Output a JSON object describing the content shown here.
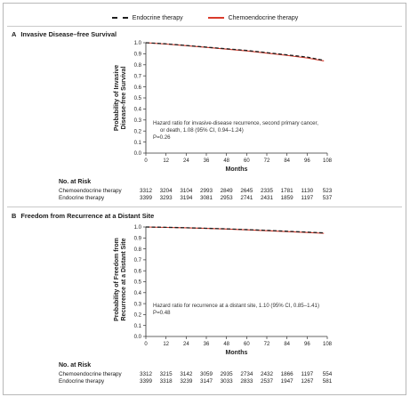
{
  "legend": [
    {
      "label": "Endocrine therapy",
      "color": "#1e1e1e",
      "style": "dashed"
    },
    {
      "label": "Chemoendocrine therapy",
      "color": "#d93a2b",
      "style": "solid"
    }
  ],
  "panels": [
    {
      "letter": "A",
      "title": "Invasive Disease–free Survival",
      "ylabel_line1": "Probability of Invasive",
      "ylabel_line2": "Disease-free Survival",
      "xlabel": "Months",
      "annotation_line1": "Hazard ratio for invasive-disease recurrence, second primary cancer,",
      "annotation_line2": "or death, 1.08 (95% CI, 0.94–1.24)",
      "annotation_line3": "P=0.26",
      "risk": {
        "title": "No. at Risk",
        "rows": [
          {
            "label": "Chemoendocrine therapy",
            "values": [
              "3312",
              "3204",
              "3104",
              "2993",
              "2849",
              "2645",
              "2335",
              "1781",
              "1130",
              "523"
            ]
          },
          {
            "label": "Endocrine therapy",
            "values": [
              "3399",
              "3293",
              "3194",
              "3081",
              "2953",
              "2741",
              "2431",
              "1859",
              "1197",
              "537"
            ]
          }
        ]
      }
    },
    {
      "letter": "B",
      "title": "Freedom from Recurrence at a Distant Site",
      "ylabel_line1": "Probability of Freedom from",
      "ylabel_line2": "Recurrence at a Distant Site",
      "xlabel": "Months",
      "annotation_line1": "Hazard ratio for recurrence at a distant site, 1.10 (95% CI, 0.85–1.41)",
      "annotation_line2": "P=0.48",
      "annotation_line3": "",
      "risk": {
        "title": "No. at Risk",
        "rows": [
          {
            "label": "Chemoendocrine therapy",
            "values": [
              "3312",
              "3215",
              "3142",
              "3059",
              "2935",
              "2734",
              "2432",
              "1866",
              "1197",
              "554"
            ]
          },
          {
            "label": "Endocrine therapy",
            "values": [
              "3399",
              "3318",
              "3239",
              "3147",
              "3033",
              "2833",
              "2537",
              "1947",
              "1267",
              "581"
            ]
          }
        ]
      }
    }
  ],
  "chart_data": [
    {
      "type": "line",
      "title": "Invasive Disease–free Survival",
      "xlabel": "Months",
      "ylabel": "Probability of Invasive Disease-free Survival",
      "xlim": [
        0,
        108
      ],
      "ylim": [
        0,
        1.0
      ],
      "xticks": [
        0,
        12,
        24,
        36,
        48,
        60,
        72,
        84,
        96,
        108
      ],
      "yticks": [
        0.0,
        0.1,
        0.2,
        0.3,
        0.4,
        0.5,
        0.6,
        0.7,
        0.8,
        0.9,
        1.0
      ],
      "ytick_labels": [
        "0.0",
        "0.1",
        "0.2",
        "0.3",
        "0.4",
        "0.5",
        "0.6",
        "0.7",
        "0.8",
        "0.9",
        "1.0"
      ],
      "x": [
        0,
        12,
        24,
        36,
        48,
        60,
        72,
        84,
        96,
        106
      ],
      "series": [
        {
          "name": "Endocrine therapy",
          "color": "#1e1e1e",
          "dash": true,
          "values": [
            1.0,
            0.99,
            0.975,
            0.96,
            0.945,
            0.93,
            0.91,
            0.89,
            0.87,
            0.84
          ]
        },
        {
          "name": "Chemoendocrine therapy",
          "color": "#d93a2b",
          "dash": false,
          "values": [
            1.0,
            0.988,
            0.973,
            0.958,
            0.942,
            0.926,
            0.906,
            0.885,
            0.862,
            0.835
          ]
        }
      ]
    },
    {
      "type": "line",
      "title": "Freedom from Recurrence at a Distant Site",
      "xlabel": "Months",
      "ylabel": "Probability of Freedom from Recurrence at a Distant Site",
      "xlim": [
        0,
        108
      ],
      "ylim": [
        0,
        1.0
      ],
      "xticks": [
        0,
        12,
        24,
        36,
        48,
        60,
        72,
        84,
        96,
        108
      ],
      "yticks": [
        0.0,
        0.1,
        0.2,
        0.3,
        0.4,
        0.5,
        0.6,
        0.7,
        0.8,
        0.9,
        1.0
      ],
      "ytick_labels": [
        "0.0",
        "0.1",
        "0.2",
        "0.3",
        "0.4",
        "0.5",
        "0.6",
        "0.7",
        "0.8",
        "0.9",
        "1.0"
      ],
      "x": [
        0,
        12,
        24,
        36,
        48,
        60,
        72,
        84,
        96,
        106
      ],
      "series": [
        {
          "name": "Endocrine therapy",
          "color": "#1e1e1e",
          "dash": true,
          "values": [
            1.0,
            0.997,
            0.993,
            0.988,
            0.983,
            0.976,
            0.969,
            0.961,
            0.953,
            0.946
          ]
        },
        {
          "name": "Chemoendocrine therapy",
          "color": "#d93a2b",
          "dash": false,
          "values": [
            1.0,
            0.996,
            0.992,
            0.987,
            0.981,
            0.974,
            0.966,
            0.958,
            0.95,
            0.942
          ]
        }
      ]
    }
  ]
}
